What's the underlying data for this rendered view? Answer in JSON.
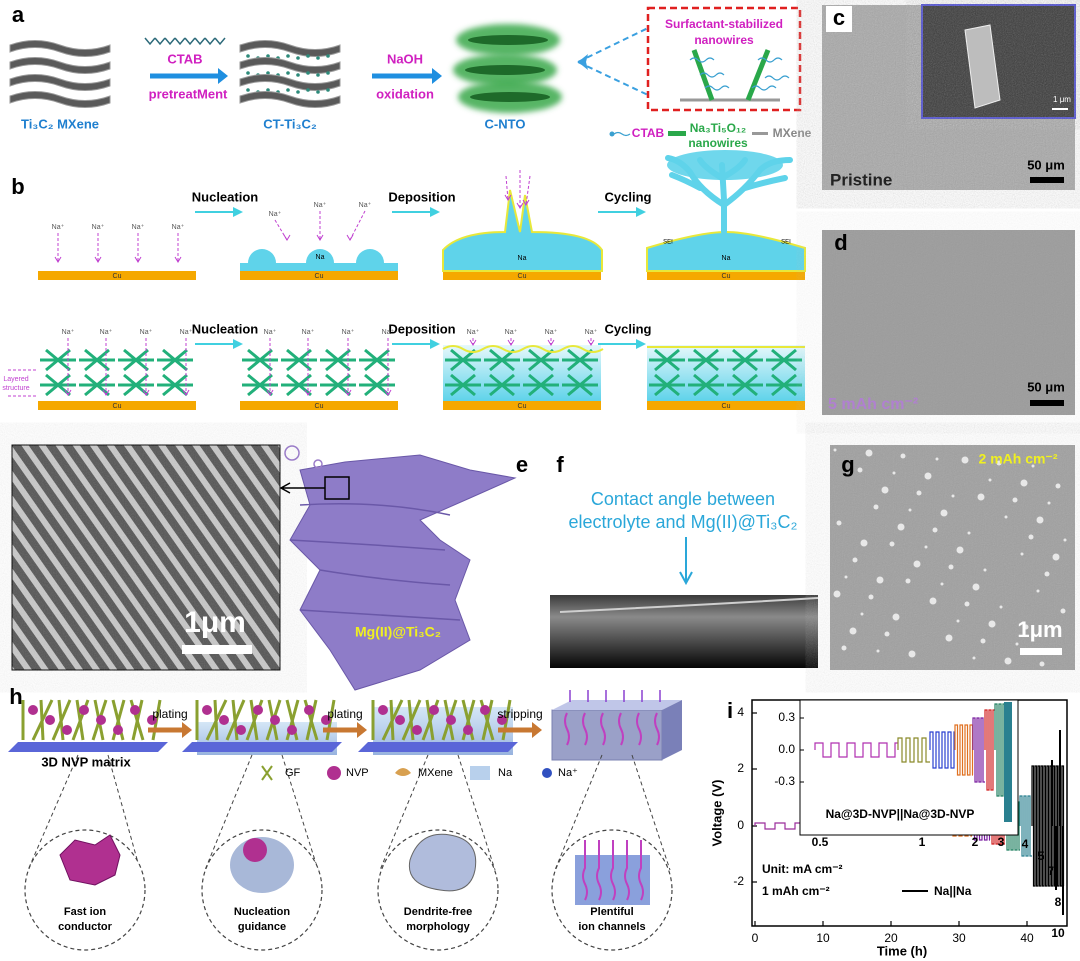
{
  "panel_a": {
    "label": "a",
    "mxene": "Ti₃C₂ MXene",
    "ctab": "CTAB",
    "pretreatment": "pretreatMent",
    "ct_ti3c2": "CT-Ti₃C₂",
    "naoh": "NaOH",
    "oxidation": "oxidation",
    "c_nto": "C-NTO",
    "inset_title": [
      "Surfactant-stabilized",
      "nanowires"
    ],
    "legend": {
      "ctab": "CTAB",
      "nanowires": [
        "Na₃Ti₅O₁₂",
        "nanowires"
      ],
      "mxene": "MXene"
    }
  },
  "panel_b": {
    "label": "b",
    "steps": [
      "Nucleation",
      "Deposition",
      "Cycling"
    ],
    "ion": "Na⁺",
    "na": "Na",
    "cu": "Cu",
    "sei": "SEI",
    "layered": [
      "Layered",
      "structure"
    ]
  },
  "panel_c": {
    "label": "c",
    "caption": "Pristine",
    "scale": "50 μm",
    "inset_scale": "1 μm"
  },
  "panel_d": {
    "label": "d",
    "caption": "5 mAh cm⁻²",
    "scale": "50 μm"
  },
  "panel_e": {
    "label": "e",
    "scale": "1μm",
    "caption": "Mg(II)@Ti₃C₂"
  },
  "panel_f": {
    "label": "f",
    "caption": [
      "Contact angle between",
      "electrolyte and Mg(II)@Ti₃C₂"
    ]
  },
  "panel_g": {
    "label": "g",
    "caption": "2 mAh cm⁻²",
    "scale": "1μm"
  },
  "panel_h": {
    "label": "h",
    "steps": [
      "plating",
      "plating",
      "stripping"
    ],
    "matrix": "3D NVP matrix",
    "legend": [
      "GF",
      "NVP",
      "MXene",
      "Na",
      "Na⁺"
    ],
    "callouts": [
      [
        "Fast ion",
        "conductor"
      ],
      [
        "Nucleation",
        "guidance"
      ],
      [
        "Dendrite-free",
        "morphology"
      ],
      [
        "Plentiful",
        "ion channels"
      ]
    ]
  },
  "panel_i": {
    "label": "i",
    "ylabel": "Voltage (V)",
    "xlabel": "Time (h)",
    "yticks": [
      "4",
      "2",
      "0",
      "-2"
    ],
    "xticks": [
      "0",
      "10",
      "20",
      "30",
      "40"
    ],
    "inset_yticks": [
      "0.3",
      "0.0",
      "-0.3"
    ],
    "inset_label": "Na@3D-NVP||Na@3D-NVP",
    "unit": "Unit: mA cm⁻²",
    "capacity": "1 mAh cm⁻²",
    "legend": "Na||Na",
    "rates": [
      "0.5",
      "1",
      "2",
      "3",
      "4",
      "5",
      "7",
      "8",
      "10"
    ]
  }
}
